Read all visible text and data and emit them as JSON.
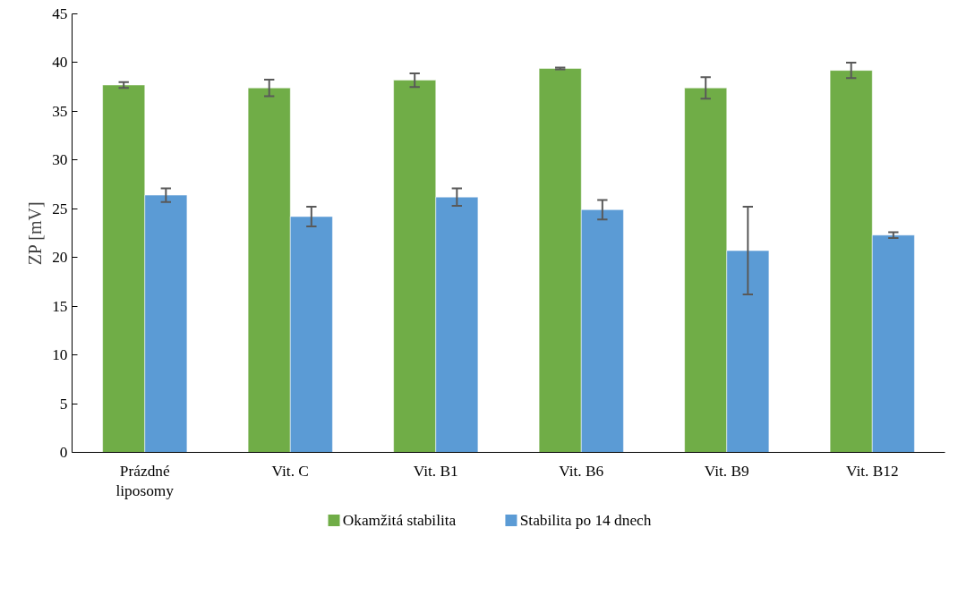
{
  "chart_data": {
    "type": "bar",
    "ylabel": "ZP [mV]",
    "categories": [
      "Prázdné\nliposomy",
      "Vit. C",
      "Vit. B1",
      "Vit. B6",
      "Vit. B9",
      "Vit. B12"
    ],
    "series": [
      {
        "name": "Okamžitá stabilita",
        "color": "#70ad47",
        "values": [
          37.7,
          37.4,
          38.2,
          39.4,
          37.4,
          39.2
        ],
        "errors": [
          0.3,
          0.85,
          0.7,
          0.1,
          1.1,
          0.8
        ]
      },
      {
        "name": "Stabilita po 14 dnech",
        "color": "#5b9bd5",
        "values": [
          26.4,
          24.2,
          26.2,
          24.9,
          20.7,
          22.3
        ],
        "errors": [
          0.7,
          1.0,
          0.9,
          1.0,
          4.5,
          0.3
        ]
      }
    ],
    "ylim": [
      0,
      45
    ],
    "yticks": [
      0,
      5,
      10,
      15,
      20,
      25,
      30,
      35,
      40,
      45
    ],
    "grid": false,
    "legend": "bottom"
  }
}
